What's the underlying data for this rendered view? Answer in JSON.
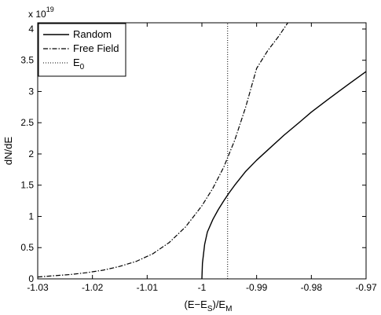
{
  "chart_data": {
    "type": "line",
    "xlabel": "(E−E_S)/E_M",
    "ylabel": "dN/dE",
    "y_multiplier": "x 10^19",
    "xlim": [
      -1.03,
      -0.97
    ],
    "ylim": [
      0,
      4.1
    ],
    "x_ticks": [
      "-1.03",
      "-1.02",
      "-1.01",
      "-1",
      "-0.99",
      "-0.98",
      "-0.97"
    ],
    "y_ticks": [
      "0",
      "0.5",
      "1",
      "1.5",
      "2",
      "2.5",
      "3",
      "3.5",
      "4"
    ],
    "grid": false,
    "legend_position": "top-left",
    "series": [
      {
        "name": "Random",
        "style": "solid",
        "x": [
          -1.0,
          -0.9999,
          -0.9995,
          -0.999,
          -0.998,
          -0.997,
          -0.996,
          -0.995,
          -0.994,
          -0.993,
          -0.992,
          -0.99,
          -0.988,
          -0.985,
          -0.982,
          -0.98,
          -0.977,
          -0.975,
          -0.973,
          -0.97
        ],
        "y": [
          0.0,
          0.25,
          0.55,
          0.75,
          0.95,
          1.11,
          1.25,
          1.38,
          1.5,
          1.61,
          1.72,
          1.9,
          2.06,
          2.3,
          2.52,
          2.67,
          2.87,
          3.0,
          3.13,
          3.32
        ]
      },
      {
        "name": "Free Field",
        "style": "dashdot",
        "x": [
          -1.03,
          -1.027,
          -1.024,
          -1.021,
          -1.018,
          -1.015,
          -1.012,
          -1.009,
          -1.006,
          -1.003,
          -1.0,
          -0.998,
          -0.996,
          -0.994,
          -0.992,
          -0.99,
          -0.988,
          -0.986,
          -0.9843
        ],
        "y": [
          0.03,
          0.05,
          0.07,
          0.1,
          0.14,
          0.2,
          0.28,
          0.4,
          0.58,
          0.83,
          1.17,
          1.45,
          1.79,
          2.22,
          2.75,
          3.37,
          3.65,
          3.88,
          4.1
        ]
      },
      {
        "name": "E_0",
        "style": "dotted",
        "x": [
          -0.9953,
          -0.9953
        ],
        "y": [
          0,
          4.1
        ]
      }
    ]
  },
  "colors": {
    "line": "#000000",
    "background": "#ffffff"
  }
}
